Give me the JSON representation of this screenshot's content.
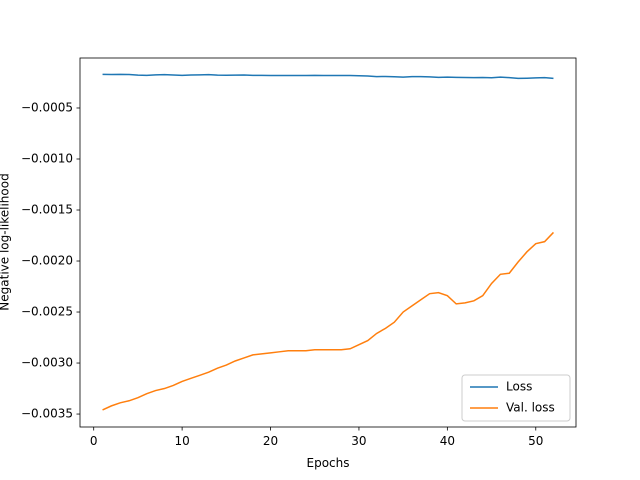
{
  "chart_data": {
    "type": "line",
    "xlabel": "Epochs",
    "ylabel": "Negative log-likelihood",
    "x": [
      1,
      2,
      3,
      4,
      5,
      6,
      7,
      8,
      9,
      10,
      11,
      12,
      13,
      14,
      15,
      16,
      17,
      18,
      19,
      20,
      21,
      22,
      23,
      24,
      25,
      26,
      27,
      28,
      29,
      30,
      31,
      32,
      33,
      34,
      35,
      36,
      37,
      38,
      39,
      40,
      41,
      42,
      43,
      44,
      45,
      46,
      47,
      48,
      49,
      50,
      51,
      52
    ],
    "series": [
      {
        "name": "Loss",
        "color": "#1f77b4",
        "values": [
          -0.00017,
          -0.000172,
          -0.00017,
          -0.000172,
          -0.000178,
          -0.00018,
          -0.000175,
          -0.000173,
          -0.000177,
          -0.00018,
          -0.000177,
          -0.000175,
          -0.000173,
          -0.000178,
          -0.000179,
          -0.000178,
          -0.000177,
          -0.00018,
          -0.00018,
          -0.000182,
          -0.000181,
          -0.000182,
          -0.000181,
          -0.000181,
          -0.00018,
          -0.000182,
          -0.000181,
          -0.000182,
          -0.000182,
          -0.000184,
          -0.000187,
          -0.000192,
          -0.000191,
          -0.000194,
          -0.000197,
          -0.000192,
          -0.000192,
          -0.000195,
          -0.0002,
          -0.000198,
          -0.0002,
          -0.000201,
          -0.000202,
          -0.000201,
          -0.000203,
          -0.000198,
          -0.000202,
          -0.00021,
          -0.000208,
          -0.000205,
          -0.000202,
          -0.00021
        ]
      },
      {
        "name": "Val. loss",
        "color": "#ff7f0e",
        "values": [
          -0.00346,
          -0.00342,
          -0.00339,
          -0.00337,
          -0.00334,
          -0.0033,
          -0.00327,
          -0.00325,
          -0.00322,
          -0.00318,
          -0.00315,
          -0.00312,
          -0.00309,
          -0.00305,
          -0.00302,
          -0.00298,
          -0.00295,
          -0.00292,
          -0.00291,
          -0.0029,
          -0.00289,
          -0.00288,
          -0.00288,
          -0.00288,
          -0.00287,
          -0.00287,
          -0.00287,
          -0.00287,
          -0.00286,
          -0.00282,
          -0.00278,
          -0.00271,
          -0.00266,
          -0.0026,
          -0.0025,
          -0.00244,
          -0.00238,
          -0.00232,
          -0.00231,
          -0.00234,
          -0.00242,
          -0.00241,
          -0.00239,
          -0.00234,
          -0.00222,
          -0.00213,
          -0.00212,
          -0.00201,
          -0.00191,
          -0.00183,
          -0.00181,
          -0.00172
        ]
      }
    ],
    "xlim": [
      -1.55,
      54.55
    ],
    "xticks": [
      0,
      10,
      20,
      30,
      40,
      50
    ],
    "ylim": [
      -0.003627,
      -1e-05
    ],
    "yticks": [
      {
        "value": -0.0035,
        "label": "−0.0035"
      },
      {
        "value": -0.003,
        "label": "−0.0030"
      },
      {
        "value": -0.0025,
        "label": "−0.0025"
      },
      {
        "value": -0.002,
        "label": "−0.0020"
      },
      {
        "value": -0.0015,
        "label": "−0.0015"
      },
      {
        "value": -0.001,
        "label": "−0.0010"
      },
      {
        "value": -0.0005,
        "label": "−0.0005"
      }
    ],
    "grid": false,
    "legend": "lower right"
  }
}
